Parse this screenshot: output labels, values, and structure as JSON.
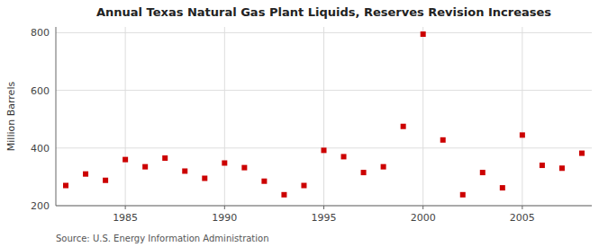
{
  "chart_data": {
    "type": "scatter",
    "title": "Annual Texas Natural Gas Plant Liquids, Reserves Revision Increases",
    "ylabel": "Million Barrels",
    "annotations": [
      "Source: U.S. Energy Information Administration"
    ],
    "x": [
      1982,
      1983,
      1984,
      1985,
      1986,
      1987,
      1988,
      1989,
      1990,
      1991,
      1992,
      1993,
      1994,
      1995,
      1996,
      1997,
      1998,
      1999,
      2000,
      2001,
      2002,
      2003,
      2004,
      2005,
      2006,
      2007,
      2008
    ],
    "values": [
      270,
      310,
      288,
      360,
      335,
      365,
      320,
      295,
      348,
      332,
      285,
      238,
      270,
      392,
      370,
      315,
      335,
      475,
      795,
      428,
      238,
      315,
      262,
      445,
      340,
      330,
      382
    ],
    "color": "#cc0000",
    "marker": "square",
    "xlim": [
      1981.5,
      2008.5
    ],
    "ylim": [
      200,
      820
    ],
    "xticks": [
      1985,
      1990,
      1995,
      2000,
      2005
    ],
    "yticks": [
      200,
      400,
      600,
      800
    ],
    "grid": true
  }
}
